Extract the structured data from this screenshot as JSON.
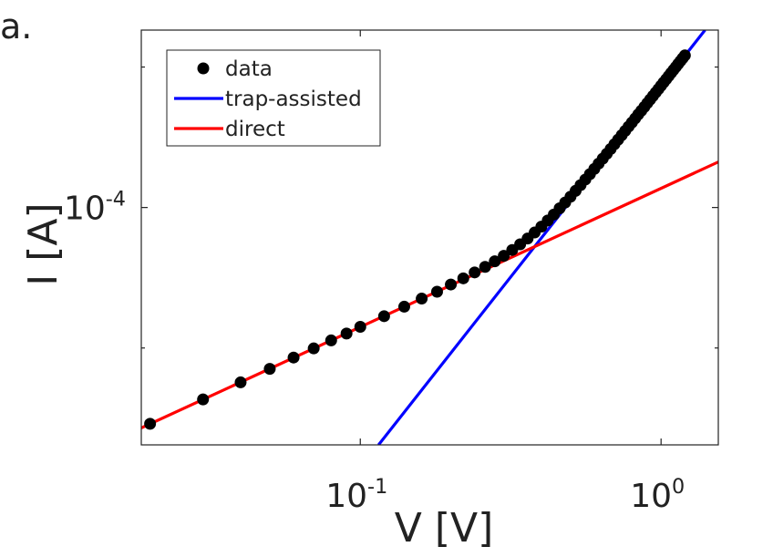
{
  "chart_data": {
    "type": "scatter",
    "panel_label": "a.",
    "xlabel": "V [V]",
    "ylabel": "I [A]",
    "xscale": "log",
    "yscale": "log",
    "xlim": [
      0.0187,
      1.55
    ],
    "ylim": [
      3.1e-05,
      0.00024
    ],
    "xticks": [
      {
        "value": 0.1,
        "label": "10",
        "exponent": "-1"
      },
      {
        "value": 1,
        "label": "10",
        "exponent": "0"
      }
    ],
    "yticks": [
      {
        "value": 0.0001,
        "label": "10",
        "exponent": "-4"
      }
    ],
    "yminorticks": [
      5e-05,
      0.0002
    ],
    "grid": false,
    "legend": "upper left",
    "series": [
      {
        "name": "data",
        "color": "#000000",
        "marker": "circle",
        "x": [
          0.02,
          0.03,
          0.04,
          0.05,
          0.06,
          0.07,
          0.08,
          0.09,
          0.1,
          0.12,
          0.14,
          0.16,
          0.18,
          0.2,
          0.22,
          0.24,
          0.26,
          0.28,
          0.3,
          0.32,
          0.34,
          0.36,
          0.38,
          0.4,
          0.42,
          0.44,
          0.46,
          0.48,
          0.5,
          0.52,
          0.54,
          0.56,
          0.58,
          0.6,
          0.62,
          0.64,
          0.66,
          0.68,
          0.7,
          0.72,
          0.74,
          0.76,
          0.78,
          0.8,
          0.82,
          0.84,
          0.86,
          0.88,
          0.9,
          0.92,
          0.94,
          0.96,
          0.98,
          1.0,
          1.02,
          1.04,
          1.06,
          1.08,
          1.1,
          1.12,
          1.14,
          1.16,
          1.18,
          1.2
        ],
        "values": [
          3.44e-05,
          3.88e-05,
          4.22e-05,
          4.51e-05,
          4.77e-05,
          4.99e-05,
          5.19e-05,
          5.37e-05,
          5.55e-05,
          5.85e-05,
          6.13e-05,
          6.38e-05,
          6.6e-05,
          6.84e-05,
          7.05e-05,
          7.26e-05,
          7.46e-05,
          7.67e-05,
          7.88e-05,
          8.11e-05,
          8.34e-05,
          8.58e-05,
          8.84e-05,
          9.1e-05,
          9.38e-05,
          9.66e-05,
          9.96e-05,
          0.0001025,
          0.0001055,
          0.0001086,
          0.0001117,
          0.0001148,
          0.0001179,
          0.000121,
          0.0001242,
          0.0001273,
          0.0001304,
          0.0001335,
          0.0001367,
          0.0001398,
          0.0001429,
          0.000146,
          0.0001491,
          0.0001521,
          0.0001552,
          0.0001583,
          0.0001613,
          0.0001643,
          0.0001674,
          0.0001704,
          0.0001734,
          0.0001764,
          0.0001794,
          0.0001824,
          0.0001854,
          0.0001883,
          0.0001913,
          0.0001943,
          0.0001972,
          0.0002001,
          0.0002031,
          0.000206,
          0.0002089,
          0.0002118
        ]
      },
      {
        "name": "trap-assisted",
        "color": "#0000ff",
        "marker": "line",
        "x": [
          0.115,
          1.4
        ],
        "values": [
          3.1e-05,
          0.00024
        ]
      },
      {
        "name": "direct",
        "color": "#ff0000",
        "marker": "line",
        "x": [
          0.0187,
          1.55
        ],
        "values": [
          3.37e-05,
          0.0001252
        ]
      }
    ]
  }
}
